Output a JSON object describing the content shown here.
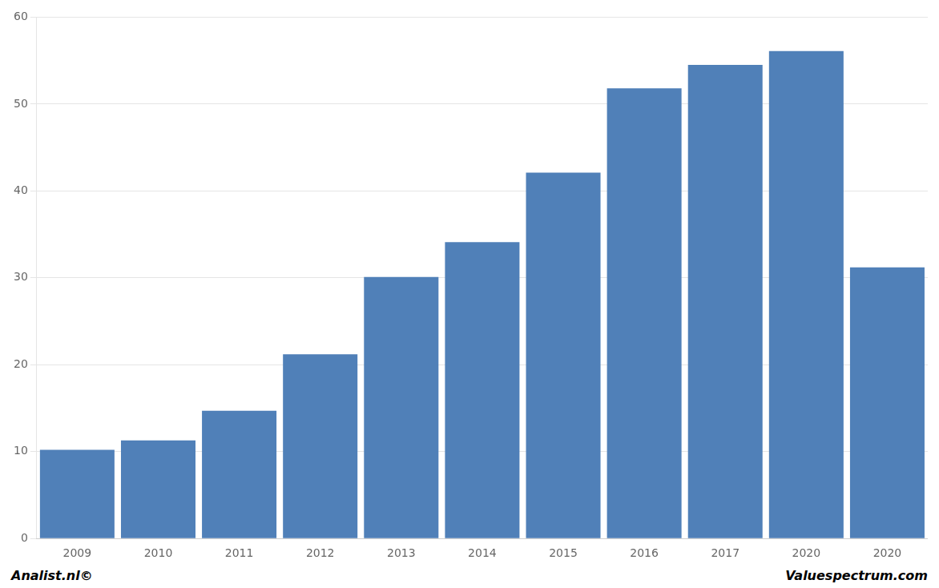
{
  "chart_data": {
    "type": "bar",
    "categories": [
      "2009",
      "2010",
      "2011",
      "2012",
      "2013",
      "2014",
      "2015",
      "2016",
      "2017",
      "2020",
      "2020"
    ],
    "values": [
      10.2,
      11.3,
      14.7,
      21.2,
      30.1,
      34.1,
      42.1,
      51.8,
      54.5,
      56.1,
      31.2
    ],
    "color": "#5080b8",
    "ylim": [
      0,
      60
    ],
    "yticks": [
      0,
      10,
      20,
      30,
      40,
      50,
      60
    ],
    "grid": true,
    "annotations": [
      "Analist.nl©",
      "Valuespectrum.com"
    ]
  }
}
